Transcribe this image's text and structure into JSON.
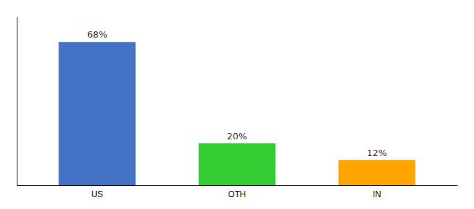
{
  "chart_data": {
    "type": "bar",
    "categories": [
      "US",
      "OTH",
      "IN"
    ],
    "values": [
      68,
      20,
      12
    ],
    "value_labels": [
      "68%",
      "20%",
      "12%"
    ],
    "colors": [
      "#4472C4",
      "#33CC33",
      "#FFA500"
    ],
    "ylim": [
      0,
      80
    ],
    "data_labels": true,
    "tick_labels": "x",
    "grid": false
  }
}
